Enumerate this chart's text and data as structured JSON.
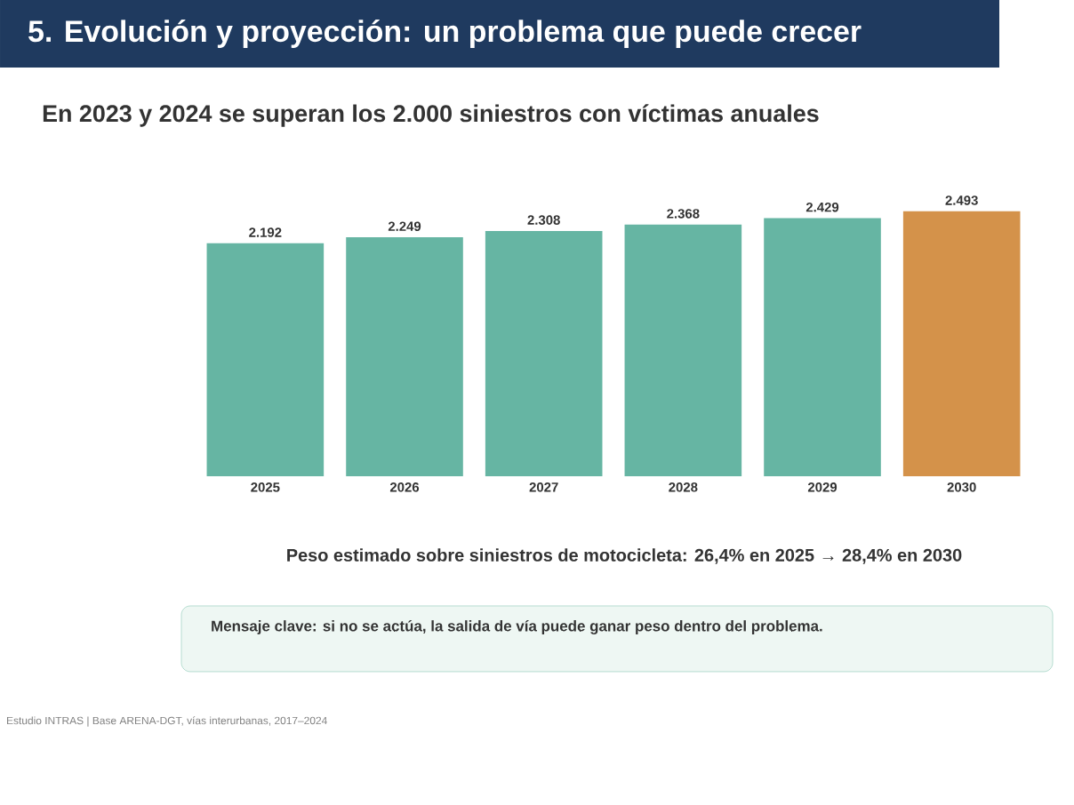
{
  "chart_data": {
    "type": "bar",
    "title": "5. Evolución y proyección: un problema que puede crecer",
    "subtitle": "En 2023 y 2024 se superan los 2.000 siniestros con víctimas anuales",
    "categories": [
      "2025",
      "2026",
      "2027",
      "2028",
      "2029",
      "2030"
    ],
    "values": [
      2192,
      2249,
      2308,
      2368,
      2429,
      2493
    ],
    "colors": [
      "#66b5a3",
      "#66b5a3",
      "#66b5a3",
      "#66b5a3",
      "#66b5a3",
      "#d4924a"
    ],
    "value_labels": [
      "2.192",
      "2.249",
      "2.308",
      "2.368",
      "2.429",
      "2.493"
    ],
    "annotations": [
      "Peso estimado sobre siniestros de motocicleta: 26,4% en 2025 → 28,4% en 2030",
      "Mensaje clave: si no se actúa, la salida de vía puede ganar peso dentro del problema.",
      "Estudio INTRAS | Base ARENA-DGT, vías interurbanas, 2017–2024"
    ]
  }
}
